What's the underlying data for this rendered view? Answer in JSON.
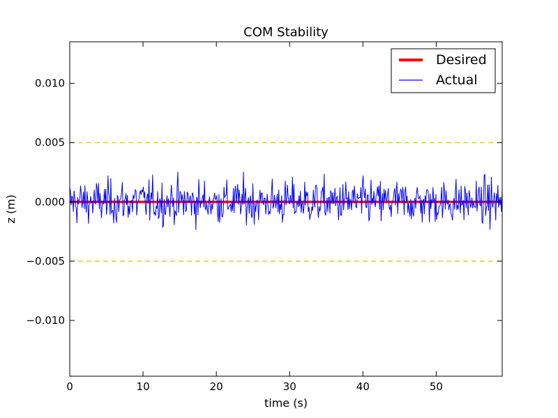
{
  "chart_data": {
    "type": "line",
    "title": "COM Stability",
    "xlabel": "time (s)",
    "ylabel": "z (m)",
    "xlim": [
      0,
      59
    ],
    "ylim": [
      -0.0147,
      0.0135
    ],
    "xticks": [
      0,
      10,
      20,
      30,
      40,
      50
    ],
    "xtick_labels": [
      "0",
      "10",
      "20",
      "30",
      "40",
      "50"
    ],
    "yticks": [
      0.01,
      0.005,
      0.0,
      -0.005,
      -0.01
    ],
    "ytick_labels": [
      "0.010",
      "0.005",
      "0.000",
      "−0.005",
      "−0.010"
    ],
    "grid": false,
    "legend_position": "top-right",
    "series": [
      {
        "name": "Desired",
        "color": "#ff0000",
        "style": "solid",
        "x": [
          0,
          59
        ],
        "values": [
          0.0,
          0.0
        ]
      },
      {
        "name": "Actual",
        "color": "#0000ff",
        "style": "solid",
        "description": "noisy signal oscillating roughly between -0.0047 and 0.0035 around 0",
        "x_start": 0,
        "x_end": 59,
        "approx_min": -0.0047,
        "approx_max": 0.0035
      }
    ],
    "reference_lines": [
      {
        "y": 0.005,
        "color": "#cccc00",
        "style": "dashed"
      },
      {
        "y": -0.005,
        "color": "#cccc00",
        "style": "dashed"
      }
    ]
  }
}
